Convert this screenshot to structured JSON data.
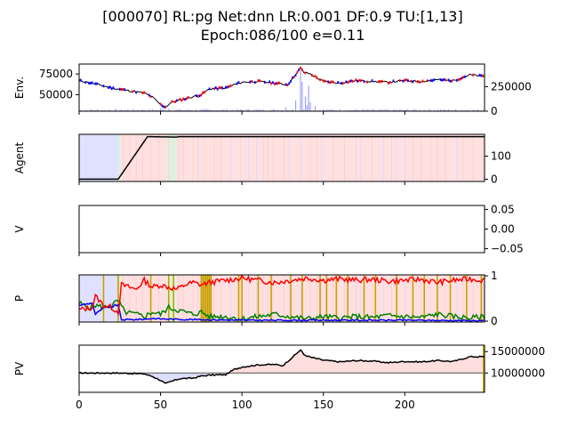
{
  "title": {
    "line1": "[000070] RL:pg Net:dnn LR:0.001 DF:0.9 TU:[1,13]",
    "line2": "Epoch:086/100 e=0.11"
  },
  "x_axis": {
    "range": [
      0,
      249
    ],
    "ticks": [
      0,
      50,
      100,
      150,
      200
    ]
  },
  "colors": {
    "buy": "#ff0000",
    "sell": "#0000ff",
    "hold": "#008000",
    "volume": "#8080ff",
    "pv_line": "#000000",
    "baseline": "#808080",
    "trade_marker": "#c8a000"
  },
  "chart_data": [
    {
      "type": "line",
      "name": "env",
      "ylabel": "Env.",
      "y_left_ticks": [
        50000,
        75000
      ],
      "y_left_range": [
        30000,
        87000
      ],
      "y_right_ticks": [
        0,
        250000
      ],
      "y_right_range": [
        0,
        480000
      ],
      "price_keypoints": [
        [
          0,
          67000
        ],
        [
          10,
          63000
        ],
        [
          20,
          58000
        ],
        [
          30,
          55000
        ],
        [
          40,
          52000
        ],
        [
          45,
          47000
        ],
        [
          50,
          38000
        ],
        [
          53,
          35000
        ],
        [
          57,
          41000
        ],
        [
          65,
          45000
        ],
        [
          75,
          50000
        ],
        [
          80,
          57000
        ],
        [
          90,
          58000
        ],
        [
          95,
          62000
        ],
        [
          100,
          65000
        ],
        [
          110,
          66000
        ],
        [
          120,
          64000
        ],
        [
          128,
          62000
        ],
        [
          132,
          72000
        ],
        [
          136,
          82000
        ],
        [
          138,
          77000
        ],
        [
          142,
          75000
        ],
        [
          150,
          66000
        ],
        [
          160,
          64000
        ],
        [
          170,
          67000
        ],
        [
          180,
          66000
        ],
        [
          190,
          65000
        ],
        [
          200,
          67000
        ],
        [
          210,
          66000
        ],
        [
          220,
          68000
        ],
        [
          230,
          67000
        ],
        [
          240,
          74000
        ],
        [
          249,
          72000
        ]
      ],
      "volume_spikes": [
        [
          127,
          40000
        ],
        [
          133,
          110000
        ],
        [
          136,
          420000
        ],
        [
          137,
          300000
        ],
        [
          139,
          150000
        ],
        [
          140,
          60000
        ],
        [
          141,
          260000
        ],
        [
          142,
          90000
        ],
        [
          145,
          50000
        ],
        [
          50,
          30000
        ],
        [
          55,
          25000
        ]
      ]
    },
    {
      "type": "line",
      "name": "agent",
      "ylabel": "Agent",
      "y_right_ticks": [
        0,
        100
      ],
      "y_range": [
        -10,
        195
      ],
      "position_keypoints": [
        [
          0,
          0
        ],
        [
          24,
          0
        ],
        [
          42,
          185
        ],
        [
          60,
          183
        ],
        [
          61,
          185
        ],
        [
          249,
          185
        ]
      ],
      "regions": [
        [
          0,
          2,
          "sell"
        ],
        [
          2,
          24,
          "sell"
        ],
        [
          24,
          26,
          "hold"
        ],
        [
          26,
          54,
          "buy"
        ],
        [
          54,
          60,
          "hold"
        ],
        [
          60,
          249,
          "buy"
        ]
      ]
    },
    {
      "type": "line",
      "name": "value",
      "ylabel": "V",
      "y_right_ticks": [
        "0.05",
        "0.00",
        "−0.05"
      ],
      "y_range": [
        -0.06,
        0.06
      ]
    },
    {
      "type": "line",
      "name": "probabilities",
      "ylabel": "P",
      "y_right_ticks": [
        0,
        1
      ],
      "y_range": [
        -0.02,
        1.02
      ],
      "buy_keypoints": [
        [
          0,
          0.25
        ],
        [
          8,
          0.3
        ],
        [
          10,
          0.55
        ],
        [
          15,
          0.35
        ],
        [
          20,
          0.3
        ],
        [
          24,
          0.2
        ],
        [
          26,
          0.8
        ],
        [
          35,
          0.7
        ],
        [
          40,
          0.9
        ],
        [
          45,
          0.75
        ],
        [
          50,
          0.8
        ],
        [
          55,
          0.75
        ],
        [
          60,
          0.7
        ],
        [
          65,
          0.8
        ],
        [
          70,
          0.85
        ],
        [
          75,
          0.8
        ],
        [
          80,
          0.85
        ],
        [
          90,
          0.9
        ],
        [
          100,
          0.95
        ],
        [
          110,
          0.9
        ],
        [
          120,
          0.85
        ],
        [
          130,
          0.9
        ],
        [
          140,
          0.95
        ],
        [
          150,
          0.9
        ],
        [
          160,
          0.93
        ],
        [
          170,
          0.9
        ],
        [
          180,
          0.92
        ],
        [
          190,
          0.88
        ],
        [
          200,
          0.9
        ],
        [
          210,
          0.92
        ],
        [
          220,
          0.85
        ],
        [
          230,
          0.9
        ],
        [
          240,
          0.93
        ],
        [
          249,
          0.9
        ]
      ],
      "hold_keypoints": [
        [
          0,
          0.4
        ],
        [
          5,
          0.3
        ],
        [
          10,
          0.35
        ],
        [
          15,
          0.3
        ],
        [
          20,
          0.35
        ],
        [
          24,
          0.45
        ],
        [
          28,
          0.2
        ],
        [
          35,
          0.15
        ],
        [
          40,
          0.1
        ],
        [
          45,
          0.2
        ],
        [
          50,
          0.15
        ],
        [
          55,
          0.3
        ],
        [
          60,
          0.25
        ],
        [
          65,
          0.2
        ],
        [
          70,
          0.15
        ],
        [
          75,
          0.2
        ],
        [
          80,
          0.1
        ],
        [
          90,
          0.1
        ],
        [
          100,
          0.05
        ],
        [
          110,
          0.1
        ],
        [
          120,
          0.15
        ],
        [
          130,
          0.1
        ],
        [
          140,
          0.05
        ],
        [
          150,
          0.1
        ],
        [
          160,
          0.07
        ],
        [
          170,
          0.1
        ],
        [
          180,
          0.08
        ],
        [
          190,
          0.12
        ],
        [
          200,
          0.1
        ],
        [
          210,
          0.08
        ],
        [
          220,
          0.15
        ],
        [
          230,
          0.1
        ],
        [
          240,
          0.07
        ],
        [
          249,
          0.1
        ]
      ],
      "sell_keypoints": [
        [
          0,
          0.35
        ],
        [
          8,
          0.4
        ],
        [
          10,
          0.15
        ],
        [
          15,
          0.3
        ],
        [
          20,
          0.3
        ],
        [
          22,
          0.35
        ],
        [
          24,
          0.35
        ],
        [
          26,
          0.03
        ],
        [
          40,
          0.04
        ],
        [
          45,
          0.06
        ],
        [
          50,
          0.05
        ],
        [
          60,
          0.04
        ],
        [
          80,
          0.03
        ],
        [
          100,
          0.02
        ],
        [
          150,
          0.02
        ],
        [
          200,
          0.02
        ],
        [
          249,
          0.01
        ]
      ],
      "trade_markers": [
        15,
        24,
        44,
        55,
        58,
        75,
        76,
        77,
        78,
        79,
        80,
        81,
        98,
        100,
        110,
        118,
        130,
        137,
        148,
        152,
        158,
        165,
        175,
        182,
        195,
        205,
        212,
        220,
        228,
        238,
        247
      ]
    },
    {
      "type": "line",
      "name": "portfolio_value",
      "ylabel": "PV",
      "y_right_ticks": [
        10000000,
        15000000
      ],
      "y_right_tick_labels": [
        "10000000",
        "15000000"
      ],
      "y_range": [
        5500000,
        16500000
      ],
      "baseline": 10000000,
      "pv_keypoints": [
        [
          0,
          10000000
        ],
        [
          24,
          10000000
        ],
        [
          32,
          9900000
        ],
        [
          40,
          9800000
        ],
        [
          45,
          9200000
        ],
        [
          50,
          8300000
        ],
        [
          53,
          7500000
        ],
        [
          57,
          8100000
        ],
        [
          62,
          8700000
        ],
        [
          70,
          8800000
        ],
        [
          75,
          9300000
        ],
        [
          80,
          9500000
        ],
        [
          90,
          9600000
        ],
        [
          95,
          10800000
        ],
        [
          100,
          11400000
        ],
        [
          110,
          11900000
        ],
        [
          120,
          12000000
        ],
        [
          125,
          11700000
        ],
        [
          128,
          12700000
        ],
        [
          132,
          14000000
        ],
        [
          136,
          15400000
        ],
        [
          138,
          14300000
        ],
        [
          142,
          13700000
        ],
        [
          150,
          13000000
        ],
        [
          160,
          12600000
        ],
        [
          170,
          12900000
        ],
        [
          180,
          12800000
        ],
        [
          190,
          12400000
        ],
        [
          200,
          12700000
        ],
        [
          210,
          12600000
        ],
        [
          220,
          12900000
        ],
        [
          230,
          12700000
        ],
        [
          240,
          13800000
        ],
        [
          249,
          13800000
        ]
      ]
    }
  ]
}
